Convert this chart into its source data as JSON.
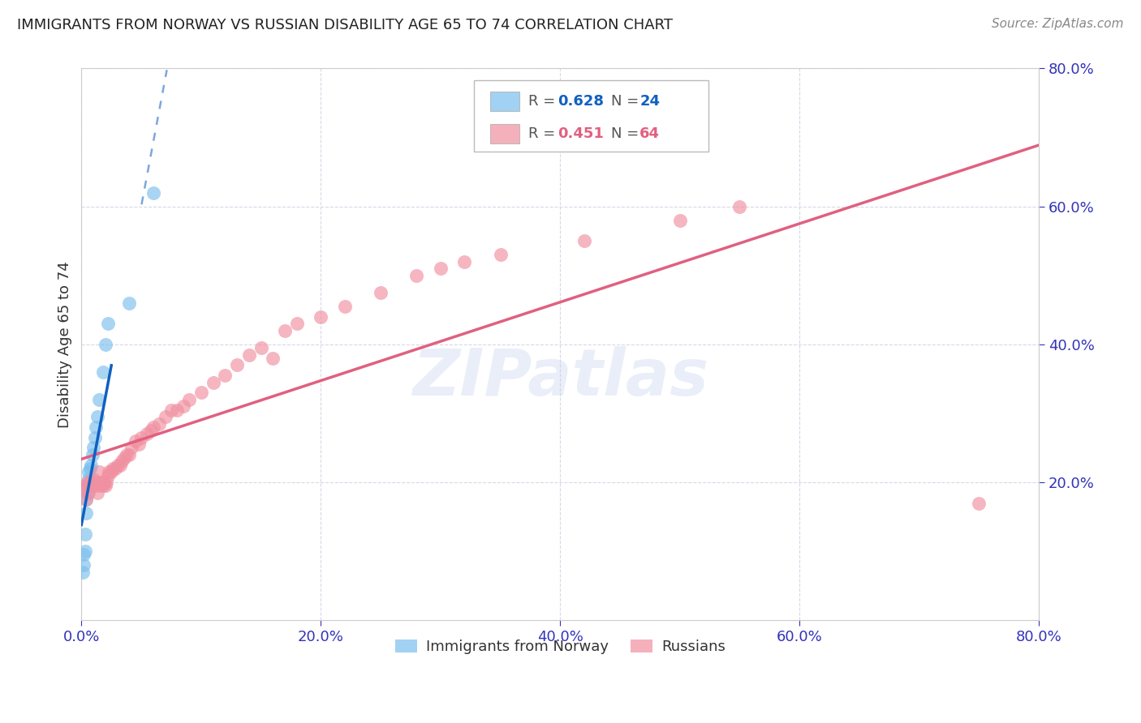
{
  "title": "IMMIGRANTS FROM NORWAY VS RUSSIAN DISABILITY AGE 65 TO 74 CORRELATION CHART",
  "source": "Source: ZipAtlas.com",
  "ylabel": "Disability Age 65 to 74",
  "xlim": [
    0.0,
    0.8
  ],
  "ylim": [
    0.0,
    0.8
  ],
  "norway_color": "#7bbfee",
  "russia_color": "#f090a0",
  "norway_R": 0.628,
  "norway_N": 24,
  "russia_R": 0.451,
  "russia_N": 64,
  "norway_line_color": "#1060c0",
  "russia_line_color": "#e06080",
  "watermark": "ZIPatlas",
  "norway_x": [
    0.001,
    0.002,
    0.002,
    0.003,
    0.003,
    0.004,
    0.004,
    0.005,
    0.005,
    0.006,
    0.006,
    0.007,
    0.008,
    0.009,
    0.01,
    0.011,
    0.012,
    0.013,
    0.015,
    0.018,
    0.02,
    0.022,
    0.04,
    0.06
  ],
  "norway_y": [
    0.07,
    0.08,
    0.095,
    0.1,
    0.125,
    0.155,
    0.175,
    0.185,
    0.195,
    0.205,
    0.215,
    0.22,
    0.225,
    0.24,
    0.25,
    0.265,
    0.28,
    0.295,
    0.32,
    0.36,
    0.4,
    0.43,
    0.46,
    0.62
  ],
  "russia_x": [
    0.002,
    0.003,
    0.004,
    0.005,
    0.006,
    0.007,
    0.008,
    0.009,
    0.01,
    0.011,
    0.012,
    0.013,
    0.014,
    0.015,
    0.016,
    0.017,
    0.018,
    0.019,
    0.02,
    0.021,
    0.022,
    0.023,
    0.025,
    0.026,
    0.028,
    0.03,
    0.032,
    0.034,
    0.036,
    0.038,
    0.04,
    0.042,
    0.045,
    0.048,
    0.05,
    0.055,
    0.058,
    0.06,
    0.065,
    0.07,
    0.075,
    0.08,
    0.085,
    0.09,
    0.1,
    0.11,
    0.12,
    0.13,
    0.14,
    0.15,
    0.16,
    0.17,
    0.18,
    0.2,
    0.22,
    0.25,
    0.28,
    0.3,
    0.32,
    0.35,
    0.42,
    0.5,
    0.55,
    0.75
  ],
  "russia_y": [
    0.19,
    0.195,
    0.175,
    0.2,
    0.185,
    0.2,
    0.195,
    0.195,
    0.205,
    0.2,
    0.195,
    0.185,
    0.2,
    0.215,
    0.195,
    0.2,
    0.195,
    0.2,
    0.195,
    0.2,
    0.21,
    0.215,
    0.215,
    0.22,
    0.22,
    0.225,
    0.225,
    0.23,
    0.235,
    0.24,
    0.24,
    0.25,
    0.26,
    0.255,
    0.265,
    0.27,
    0.275,
    0.28,
    0.285,
    0.295,
    0.305,
    0.305,
    0.31,
    0.32,
    0.33,
    0.345,
    0.355,
    0.37,
    0.385,
    0.395,
    0.38,
    0.42,
    0.43,
    0.44,
    0.455,
    0.475,
    0.5,
    0.51,
    0.52,
    0.53,
    0.55,
    0.58,
    0.6,
    0.17
  ],
  "background_color": "#ffffff",
  "grid_color": "#d8d8e8",
  "axis_label_color": "#3333bb",
  "title_color": "#222222"
}
